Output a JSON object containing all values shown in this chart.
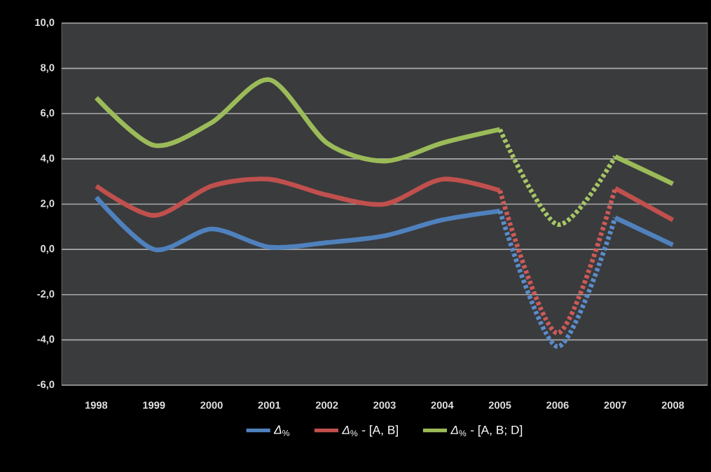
{
  "chart_data": {
    "type": "line",
    "categories": [
      "1998",
      "1999",
      "2000",
      "2001",
      "2002",
      "2003",
      "2004",
      "2005",
      "2006",
      "2007",
      "2008"
    ],
    "series": [
      {
        "name": "*Δ*$_{%}$",
        "color": "#4f81bd",
        "line_style": "solid",
        "values": [
          2.3,
          0.0,
          0.9,
          0.1,
          0.3,
          0.6,
          1.3,
          1.7,
          null,
          1.4,
          0.2
        ]
      },
      {
        "name": "*Δ*$_{%}$ - [A, B]",
        "color": "#c0504d",
        "line_style": "solid",
        "values": [
          2.8,
          1.5,
          2.8,
          3.1,
          2.4,
          2.0,
          3.1,
          2.6,
          null,
          2.7,
          1.3
        ]
      },
      {
        "name": "*Δ*$_{%}$ - [A, B; D]",
        "color": "#9bbb59",
        "line_style": "solid",
        "values": [
          6.7,
          4.6,
          5.6,
          7.5,
          4.7,
          3.9,
          4.7,
          5.3,
          null,
          4.1,
          2.9
        ]
      },
      {
        "color": "#5a8ccb",
        "line_style": "dotted",
        "values": [
          null,
          null,
          null,
          null,
          null,
          null,
          null,
          1.7,
          -4.3,
          1.4,
          null
        ]
      },
      {
        "color": "#cc5a57",
        "line_style": "dotted",
        "values": [
          null,
          null,
          null,
          null,
          null,
          null,
          null,
          2.6,
          -3.7,
          2.7,
          null
        ]
      },
      {
        "color": "#a6c665",
        "line_style": "dotted",
        "values": [
          null,
          null,
          null,
          null,
          null,
          null,
          null,
          5.3,
          1.1,
          4.1,
          null
        ]
      }
    ],
    "ylim": [
      -6,
      10
    ],
    "yticks": [
      {
        "value": -6,
        "label": "-6,0"
      },
      {
        "value": -4,
        "label": "-4,0"
      },
      {
        "value": -2,
        "label": "-2,0"
      },
      {
        "value": 0,
        "label": "0,0"
      },
      {
        "value": 2,
        "label": "2,0"
      },
      {
        "value": 4,
        "label": "4,0"
      },
      {
        "value": 6,
        "label": "6,0"
      },
      {
        "value": 8,
        "label": "8,0"
      },
      {
        "value": 10,
        "label": "10,0"
      }
    ],
    "grid": "y",
    "legend": "bottom",
    "marker": "none"
  }
}
